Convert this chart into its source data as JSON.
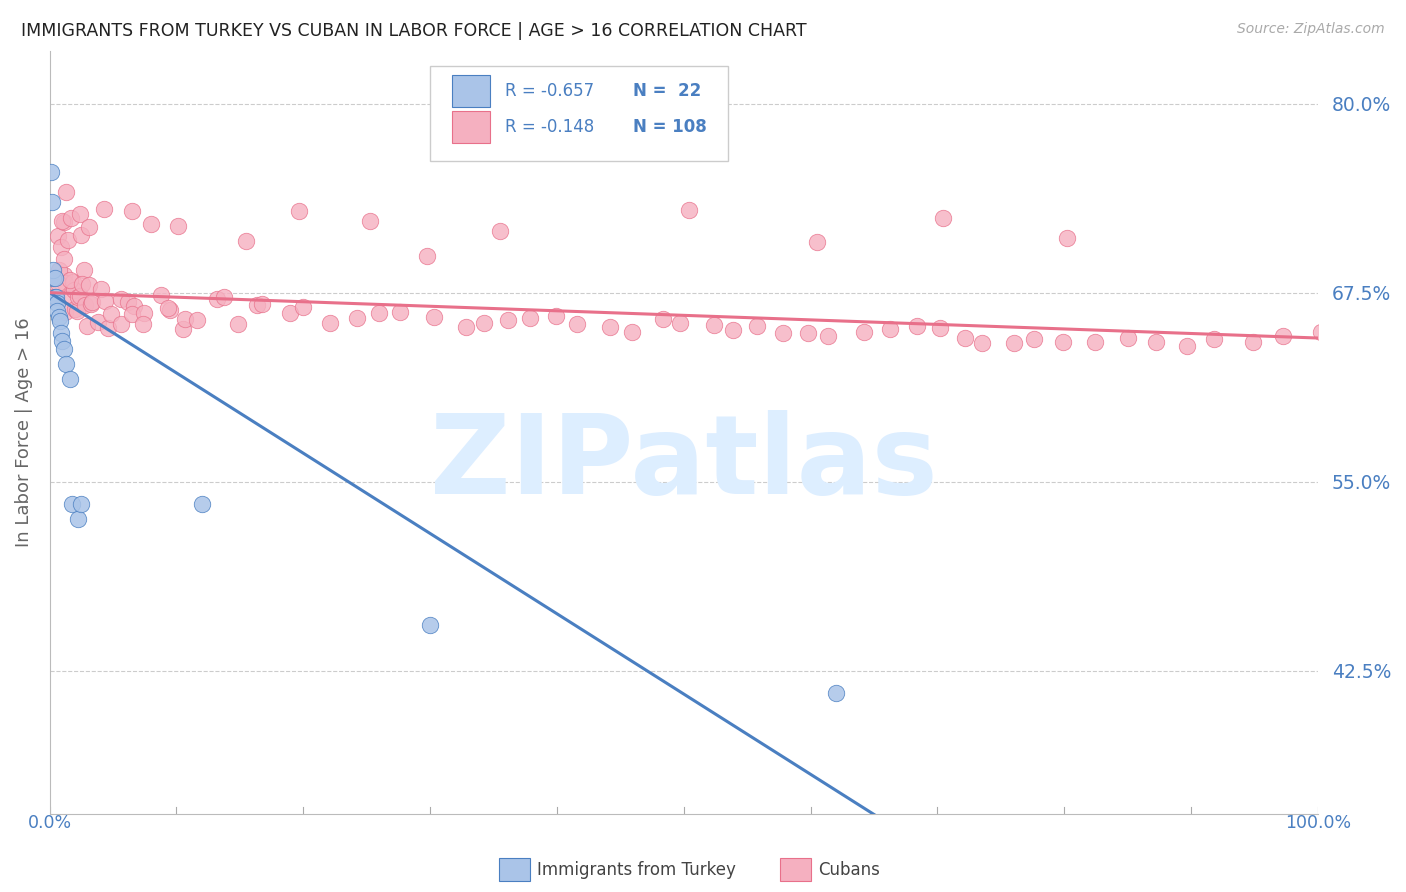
{
  "title": "IMMIGRANTS FROM TURKEY VS CUBAN IN LABOR FORCE | AGE > 16 CORRELATION CHART",
  "source": "Source: ZipAtlas.com",
  "ylabel": "In Labor Force | Age > 16",
  "xlim": [
    0.0,
    1.0
  ],
  "ylim": [
    0.33,
    0.835
  ],
  "yticks": [
    0.425,
    0.55,
    0.675,
    0.8
  ],
  "ytick_labels": [
    "42.5%",
    "55.0%",
    "67.5%",
    "80.0%"
  ],
  "color_turkey": "#aac4e8",
  "color_cuban": "#f5b0c0",
  "color_line_turkey": "#4a7fc1",
  "color_line_cuban": "#e8708a",
  "color_text_blue": "#4a7fc1",
  "color_title": "#222222",
  "watermark_text": "ZIPatlas",
  "watermark_color": "#ddeeff",
  "legend_r_turkey": "R = -0.657",
  "legend_n_turkey": "N =  22",
  "legend_r_cuban": "R = -0.148",
  "legend_n_cuban": "N = 108",
  "bg_color": "#ffffff",
  "grid_color": "#cccccc",
  "fig_width": 14.06,
  "fig_height": 8.92,
  "dpi": 100,
  "turkey_x": [
    0.001,
    0.002,
    0.003,
    0.003,
    0.004,
    0.004,
    0.005,
    0.006,
    0.006,
    0.007,
    0.008,
    0.009,
    0.01,
    0.011,
    0.013,
    0.016,
    0.018,
    0.022,
    0.025,
    0.12,
    0.3,
    0.62
  ],
  "turkey_y": [
    0.755,
    0.735,
    0.685,
    0.69,
    0.685,
    0.672,
    0.672,
    0.668,
    0.663,
    0.659,
    0.656,
    0.648,
    0.643,
    0.638,
    0.628,
    0.618,
    0.535,
    0.525,
    0.535,
    0.535,
    0.455,
    0.41
  ],
  "cuban_x": [
    0.002,
    0.005,
    0.006,
    0.007,
    0.008,
    0.009,
    0.01,
    0.01,
    0.012,
    0.014,
    0.015,
    0.016,
    0.017,
    0.018,
    0.019,
    0.02,
    0.022,
    0.023,
    0.024,
    0.025,
    0.026,
    0.027,
    0.028,
    0.03,
    0.032,
    0.034,
    0.036,
    0.038,
    0.04,
    0.043,
    0.045,
    0.048,
    0.05,
    0.055,
    0.06,
    0.065,
    0.07,
    0.075,
    0.08,
    0.085,
    0.09,
    0.095,
    0.1,
    0.11,
    0.12,
    0.13,
    0.14,
    0.15,
    0.16,
    0.17,
    0.19,
    0.2,
    0.22,
    0.24,
    0.26,
    0.28,
    0.3,
    0.32,
    0.34,
    0.36,
    0.38,
    0.4,
    0.42,
    0.44,
    0.46,
    0.48,
    0.5,
    0.52,
    0.54,
    0.56,
    0.58,
    0.6,
    0.62,
    0.64,
    0.66,
    0.68,
    0.7,
    0.72,
    0.74,
    0.76,
    0.78,
    0.8,
    0.82,
    0.85,
    0.88,
    0.9,
    0.92,
    0.95,
    0.97,
    1.0,
    0.007,
    0.012,
    0.018,
    0.025,
    0.03,
    0.04,
    0.06,
    0.08,
    0.1,
    0.15,
    0.2,
    0.25,
    0.3,
    0.35,
    0.5,
    0.6,
    0.7,
    0.8
  ],
  "cuban_y": [
    0.675,
    0.685,
    0.71,
    0.72,
    0.69,
    0.705,
    0.68,
    0.665,
    0.695,
    0.68,
    0.71,
    0.68,
    0.67,
    0.68,
    0.66,
    0.68,
    0.71,
    0.66,
    0.67,
    0.69,
    0.675,
    0.665,
    0.68,
    0.655,
    0.675,
    0.665,
    0.67,
    0.66,
    0.68,
    0.65,
    0.67,
    0.665,
    0.67,
    0.655,
    0.67,
    0.67,
    0.66,
    0.665,
    0.655,
    0.67,
    0.66,
    0.665,
    0.66,
    0.655,
    0.66,
    0.675,
    0.67,
    0.66,
    0.665,
    0.665,
    0.66,
    0.665,
    0.655,
    0.66,
    0.665,
    0.655,
    0.66,
    0.655,
    0.655,
    0.655,
    0.655,
    0.66,
    0.655,
    0.655,
    0.65,
    0.655,
    0.655,
    0.655,
    0.65,
    0.655,
    0.655,
    0.65,
    0.655,
    0.65,
    0.65,
    0.65,
    0.65,
    0.645,
    0.645,
    0.645,
    0.645,
    0.645,
    0.645,
    0.645,
    0.645,
    0.645,
    0.645,
    0.645,
    0.645,
    0.645,
    0.72,
    0.74,
    0.72,
    0.73,
    0.72,
    0.73,
    0.73,
    0.72,
    0.72,
    0.71,
    0.73,
    0.72,
    0.7,
    0.72,
    0.73,
    0.71,
    0.72,
    0.71
  ],
  "turkey_line_x": [
    0.0,
    0.65
  ],
  "turkey_line_y": [
    0.675,
    0.33
  ],
  "cuban_line_x": [
    0.0,
    1.0
  ],
  "cuban_line_y": [
    0.675,
    0.645
  ]
}
